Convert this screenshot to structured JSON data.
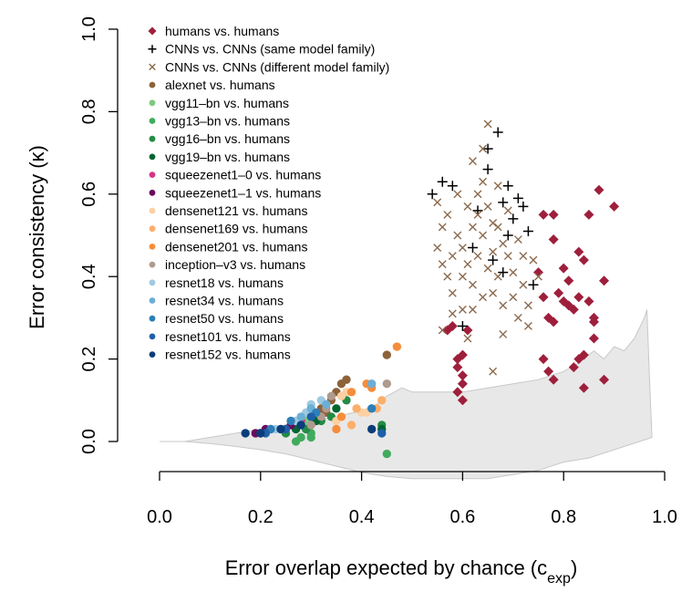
{
  "chart_data": {
    "type": "scatter",
    "title": "",
    "xlabel": "Error overlap expected by chance (c",
    "xlabel_sub": "exp",
    "xlabel_end": ")",
    "ylabel": "Error consistency (κ)",
    "xlim": [
      0.0,
      1.0
    ],
    "ylim": [
      0.0,
      1.0
    ],
    "x_ticks": [
      0.0,
      0.2,
      0.4,
      0.6,
      0.8,
      1.0
    ],
    "x_tick_labels": [
      "0.0",
      "0.2",
      "0.4",
      "0.6",
      "0.8",
      "1.0"
    ],
    "y_ticks": [
      0.0,
      0.2,
      0.4,
      0.6,
      0.8,
      1.0
    ],
    "y_tick_labels": [
      "0.0",
      "0.2",
      "0.4",
      "0.6",
      "0.8",
      "1.0"
    ],
    "grid": false,
    "legend_position": "top-left",
    "band": {
      "color": "#e8e8e8",
      "upper": [
        [
          0.0,
          0.0
        ],
        [
          0.05,
          0.0
        ],
        [
          0.1,
          0.01
        ],
        [
          0.15,
          0.02
        ],
        [
          0.2,
          0.03
        ],
        [
          0.25,
          0.04
        ],
        [
          0.3,
          0.05
        ],
        [
          0.35,
          0.06
        ],
        [
          0.4,
          0.075
        ],
        [
          0.43,
          0.09
        ],
        [
          0.45,
          0.11
        ],
        [
          0.48,
          0.13
        ],
        [
          0.5,
          0.12
        ],
        [
          0.55,
          0.12
        ],
        [
          0.6,
          0.12
        ],
        [
          0.65,
          0.13
        ],
        [
          0.7,
          0.14
        ],
        [
          0.75,
          0.15
        ],
        [
          0.8,
          0.17
        ],
        [
          0.83,
          0.19
        ],
        [
          0.86,
          0.22
        ],
        [
          0.88,
          0.2
        ],
        [
          0.9,
          0.23
        ],
        [
          0.92,
          0.22
        ],
        [
          0.94,
          0.25
        ],
        [
          0.96,
          0.3
        ],
        [
          0.965,
          0.32
        ],
        [
          0.97,
          0.15
        ],
        [
          0.975,
          0.01
        ]
      ],
      "lower": [
        [
          0.975,
          0.01
        ],
        [
          0.95,
          0.0
        ],
        [
          0.9,
          -0.02
        ],
        [
          0.85,
          -0.04
        ],
        [
          0.8,
          -0.05
        ],
        [
          0.75,
          -0.07
        ],
        [
          0.7,
          -0.08
        ],
        [
          0.65,
          -0.09
        ],
        [
          0.6,
          -0.09
        ],
        [
          0.55,
          -0.09
        ],
        [
          0.5,
          -0.09
        ],
        [
          0.45,
          -0.085
        ],
        [
          0.4,
          -0.075
        ],
        [
          0.35,
          -0.06
        ],
        [
          0.3,
          -0.045
        ],
        [
          0.25,
          -0.03
        ],
        [
          0.2,
          -0.02
        ],
        [
          0.15,
          -0.012
        ],
        [
          0.1,
          -0.005
        ],
        [
          0.05,
          0.0
        ],
        [
          0.0,
          0.0
        ]
      ]
    },
    "series": [
      {
        "name": "humans vs. humans",
        "marker": "diamond",
        "color": "#9e1f3c",
        "points": [
          [
            0.57,
            0.27
          ],
          [
            0.58,
            0.28
          ],
          [
            0.59,
            0.18
          ],
          [
            0.59,
            0.2
          ],
          [
            0.6,
            0.16
          ],
          [
            0.6,
            0.21
          ],
          [
            0.6,
            0.14
          ],
          [
            0.59,
            0.12
          ],
          [
            0.6,
            0.1
          ],
          [
            0.61,
            0.27
          ],
          [
            0.76,
            0.55
          ],
          [
            0.78,
            0.55
          ],
          [
            0.78,
            0.49
          ],
          [
            0.75,
            0.41
          ],
          [
            0.76,
            0.35
          ],
          [
            0.77,
            0.3
          ],
          [
            0.78,
            0.29
          ],
          [
            0.76,
            0.2
          ],
          [
            0.77,
            0.17
          ],
          [
            0.78,
            0.15
          ],
          [
            0.79,
            0.36
          ],
          [
            0.8,
            0.42
          ],
          [
            0.8,
            0.34
          ],
          [
            0.81,
            0.33
          ],
          [
            0.81,
            0.39
          ],
          [
            0.82,
            0.32
          ],
          [
            0.83,
            0.46
          ],
          [
            0.84,
            0.44
          ],
          [
            0.83,
            0.35
          ],
          [
            0.83,
            0.2
          ],
          [
            0.82,
            0.18
          ],
          [
            0.84,
            0.21
          ],
          [
            0.84,
            0.13
          ],
          [
            0.85,
            0.55
          ],
          [
            0.85,
            0.34
          ],
          [
            0.86,
            0.3
          ],
          [
            0.86,
            0.29
          ],
          [
            0.87,
            0.61
          ],
          [
            0.88,
            0.39
          ],
          [
            0.88,
            0.15
          ],
          [
            0.9,
            0.57
          ],
          [
            0.86,
            0.25
          ]
        ]
      },
      {
        "name": "CNNs vs. CNNs (same model family)",
        "marker": "plus",
        "color": "#000000",
        "points": [
          [
            0.54,
            0.6
          ],
          [
            0.56,
            0.63
          ],
          [
            0.58,
            0.62
          ],
          [
            0.6,
            0.28
          ],
          [
            0.62,
            0.47
          ],
          [
            0.63,
            0.56
          ],
          [
            0.65,
            0.66
          ],
          [
            0.65,
            0.71
          ],
          [
            0.67,
            0.75
          ],
          [
            0.68,
            0.58
          ],
          [
            0.69,
            0.62
          ],
          [
            0.69,
            0.5
          ],
          [
            0.7,
            0.54
          ],
          [
            0.71,
            0.59
          ],
          [
            0.72,
            0.57
          ],
          [
            0.66,
            0.44
          ],
          [
            0.68,
            0.41
          ],
          [
            0.73,
            0.51
          ],
          [
            0.74,
            0.38
          ]
        ]
      },
      {
        "name": "CNNs vs. CNNs (different model family)",
        "marker": "cross",
        "color": "#8b6a4e",
        "points": [
          [
            0.55,
            0.58
          ],
          [
            0.56,
            0.52
          ],
          [
            0.56,
            0.43
          ],
          [
            0.57,
            0.55
          ],
          [
            0.57,
            0.4
          ],
          [
            0.58,
            0.36
          ],
          [
            0.58,
            0.31
          ],
          [
            0.56,
            0.27
          ],
          [
            0.59,
            0.6
          ],
          [
            0.59,
            0.5
          ],
          [
            0.6,
            0.47
          ],
          [
            0.6,
            0.32
          ],
          [
            0.61,
            0.57
          ],
          [
            0.61,
            0.43
          ],
          [
            0.62,
            0.52
          ],
          [
            0.62,
            0.38
          ],
          [
            0.62,
            0.32
          ],
          [
            0.63,
            0.6
          ],
          [
            0.63,
            0.55
          ],
          [
            0.63,
            0.45
          ],
          [
            0.64,
            0.71
          ],
          [
            0.64,
            0.63
          ],
          [
            0.64,
            0.5
          ],
          [
            0.65,
            0.77
          ],
          [
            0.65,
            0.57
          ],
          [
            0.65,
            0.42
          ],
          [
            0.66,
            0.53
          ],
          [
            0.66,
            0.46
          ],
          [
            0.66,
            0.36
          ],
          [
            0.66,
            0.17
          ],
          [
            0.67,
            0.62
          ],
          [
            0.67,
            0.52
          ],
          [
            0.67,
            0.4
          ],
          [
            0.68,
            0.48
          ],
          [
            0.68,
            0.33
          ],
          [
            0.69,
            0.56
          ],
          [
            0.69,
            0.45
          ],
          [
            0.7,
            0.41
          ],
          [
            0.7,
            0.35
          ],
          [
            0.71,
            0.49
          ],
          [
            0.71,
            0.3
          ],
          [
            0.72,
            0.45
          ],
          [
            0.72,
            0.38
          ],
          [
            0.73,
            0.33
          ],
          [
            0.73,
            0.28
          ],
          [
            0.74,
            0.44
          ],
          [
            0.75,
            0.4
          ],
          [
            0.55,
            0.47
          ],
          [
            0.6,
            0.4
          ],
          [
            0.64,
            0.35
          ],
          [
            0.62,
            0.68
          ],
          [
            0.68,
            0.26
          ],
          [
            0.58,
            0.45
          ],
          [
            0.61,
            0.25
          ]
        ]
      },
      {
        "name": "alexnet vs. humans",
        "marker": "circle",
        "color": "#8c6239",
        "points": [
          [
            0.32,
            0.08
          ],
          [
            0.34,
            0.1
          ],
          [
            0.35,
            0.12
          ],
          [
            0.36,
            0.14
          ],
          [
            0.37,
            0.15
          ],
          [
            0.45,
            0.21
          ],
          [
            0.33,
            0.07
          ]
        ]
      },
      {
        "name": "vgg11–bn vs. humans",
        "marker": "circle",
        "color": "#7fc97f",
        "points": [
          [
            0.25,
            0.03
          ],
          [
            0.27,
            0.04
          ],
          [
            0.29,
            0.05
          ],
          [
            0.31,
            0.06
          ]
        ]
      },
      {
        "name": "vgg13–bn vs. humans",
        "marker": "circle",
        "color": "#41ab5d",
        "points": [
          [
            0.27,
            0.0
          ],
          [
            0.28,
            0.01
          ],
          [
            0.3,
            0.02
          ],
          [
            0.3,
            0.01
          ],
          [
            0.45,
            -0.03
          ]
        ]
      },
      {
        "name": "vgg16–bn vs. humans",
        "marker": "circle",
        "color": "#238b45",
        "points": [
          [
            0.25,
            0.02
          ],
          [
            0.29,
            0.03
          ],
          [
            0.32,
            0.05
          ],
          [
            0.34,
            0.06
          ],
          [
            0.37,
            0.1
          ],
          [
            0.44,
            0.04
          ]
        ]
      },
      {
        "name": "vgg19–bn vs. humans",
        "marker": "circle",
        "color": "#00662f",
        "points": [
          [
            0.27,
            0.03
          ],
          [
            0.31,
            0.05
          ],
          [
            0.35,
            0.08
          ],
          [
            0.44,
            0.03
          ]
        ]
      },
      {
        "name": "squeezenet1–0 vs. humans",
        "marker": "circle",
        "color": "#d6338a",
        "points": [
          [
            0.2,
            0.02
          ],
          [
            0.22,
            0.03
          ],
          [
            0.28,
            0.05
          ]
        ]
      },
      {
        "name": "squeezenet1–1 vs. humans",
        "marker": "circle",
        "color": "#6a0a5e",
        "points": [
          [
            0.19,
            0.02
          ],
          [
            0.21,
            0.03
          ],
          [
            0.26,
            0.04
          ]
        ]
      },
      {
        "name": "densenet121 vs. humans",
        "marker": "circle",
        "color": "#fdd0a2",
        "points": [
          [
            0.35,
            0.05
          ],
          [
            0.36,
            0.11
          ],
          [
            0.37,
            0.12
          ],
          [
            0.4,
            0.07
          ],
          [
            0.41,
            0.07
          ]
        ]
      },
      {
        "name": "densenet169 vs. humans",
        "marker": "circle",
        "color": "#fdae6b",
        "points": [
          [
            0.36,
            0.06
          ],
          [
            0.38,
            0.04
          ],
          [
            0.39,
            0.08
          ],
          [
            0.43,
            0.08
          ],
          [
            0.44,
            0.1
          ]
        ]
      },
      {
        "name": "densenet201 vs. humans",
        "marker": "circle",
        "color": "#f58d3b",
        "points": [
          [
            0.35,
            0.03
          ],
          [
            0.36,
            0.06
          ],
          [
            0.38,
            0.12
          ],
          [
            0.41,
            0.14
          ],
          [
            0.42,
            0.13
          ],
          [
            0.47,
            0.23
          ]
        ]
      },
      {
        "name": "inception–v3 vs. humans",
        "marker": "circle",
        "color": "#b09a8e",
        "points": [
          [
            0.3,
            0.04
          ],
          [
            0.32,
            0.06
          ],
          [
            0.33,
            0.08
          ],
          [
            0.34,
            0.11
          ],
          [
            0.45,
            0.14
          ]
        ]
      },
      {
        "name": "resnet18 vs. humans",
        "marker": "circle",
        "color": "#9ecae1",
        "points": [
          [
            0.23,
            0.03
          ],
          [
            0.27,
            0.05
          ],
          [
            0.29,
            0.07
          ],
          [
            0.3,
            0.09
          ],
          [
            0.32,
            0.1
          ]
        ]
      },
      {
        "name": "resnet34 vs. humans",
        "marker": "circle",
        "color": "#6baed6",
        "points": [
          [
            0.24,
            0.03
          ],
          [
            0.28,
            0.06
          ],
          [
            0.3,
            0.08
          ],
          [
            0.33,
            0.09
          ],
          [
            0.42,
            0.14
          ]
        ]
      },
      {
        "name": "resnet50 vs. humans",
        "marker": "circle",
        "color": "#2c7fb8",
        "points": [
          [
            0.22,
            0.03
          ],
          [
            0.26,
            0.05
          ],
          [
            0.31,
            0.07
          ],
          [
            0.42,
            0.08
          ]
        ]
      },
      {
        "name": "resnet101 vs. humans",
        "marker": "circle",
        "color": "#1f5fa8",
        "points": [
          [
            0.21,
            0.02
          ],
          [
            0.25,
            0.03
          ],
          [
            0.3,
            0.06
          ],
          [
            0.44,
            0.02
          ]
        ]
      },
      {
        "name": "resnet152 vs. humans",
        "marker": "circle",
        "color": "#0b3d7a",
        "points": [
          [
            0.17,
            0.02
          ],
          [
            0.2,
            0.02
          ],
          [
            0.24,
            0.03
          ],
          [
            0.28,
            0.04
          ],
          [
            0.42,
            0.03
          ]
        ]
      }
    ]
  }
}
